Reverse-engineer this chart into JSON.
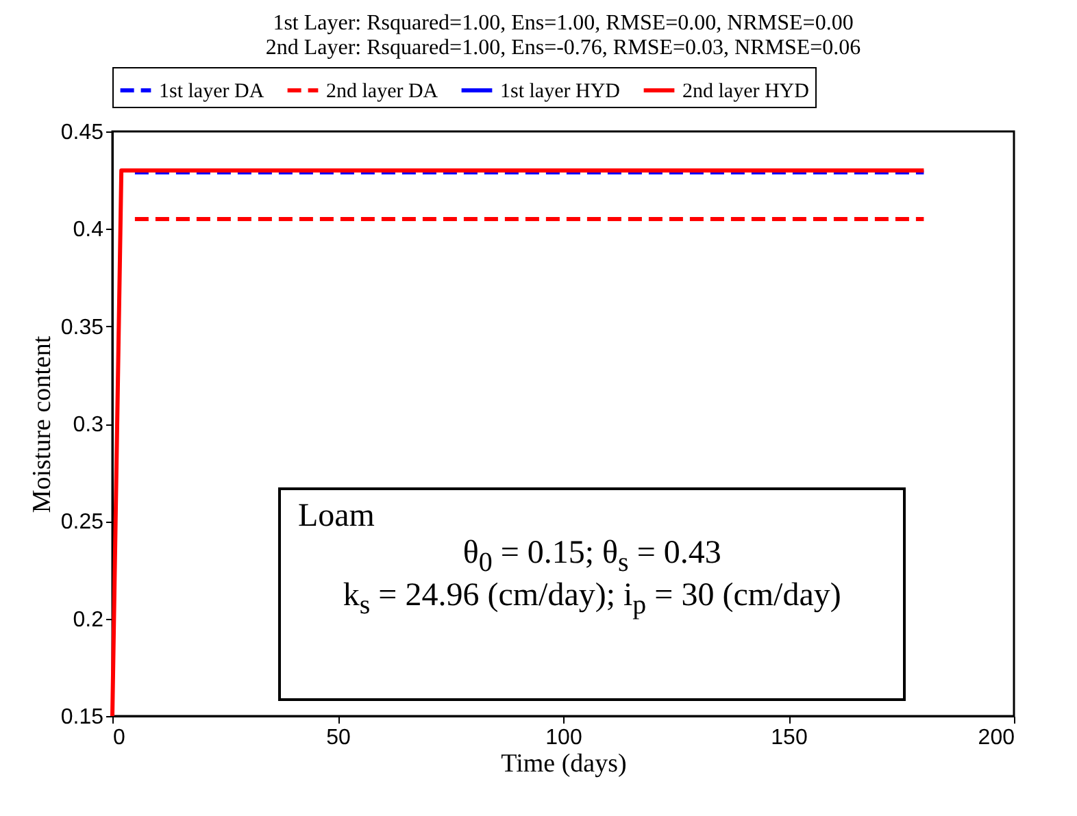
{
  "chart_data": {
    "type": "line",
    "title": [
      "1st Layer: Rsquared=1.00, Ens=1.00, RMSE=0.00, NRMSE=0.00",
      "2nd Layer: Rsquared=1.00, Ens=-0.76, RMSE=0.03, NRMSE=0.06"
    ],
    "xlabel": "Time (days)",
    "ylabel": "Moisture content",
    "xlim": [
      0,
      200
    ],
    "xticks": [
      0,
      50,
      100,
      150,
      200
    ],
    "ylim": [
      0.15,
      0.45
    ],
    "yticks": [
      0.15,
      0.2,
      0.25,
      0.3,
      0.35,
      0.4,
      0.45
    ],
    "grid": false,
    "legend": "top",
    "series": [
      {
        "name": "1st layer DA",
        "color": "#0000ff",
        "line_style": "dashed",
        "x": [
          5,
          180
        ],
        "values": [
          0.429,
          0.429
        ]
      },
      {
        "name": "2nd layer DA",
        "color": "#ff0000",
        "line_style": "dashed",
        "x": [
          5,
          180
        ],
        "values": [
          0.405,
          0.405
        ]
      },
      {
        "name": "1st layer HYD",
        "color": "#0000ff",
        "line_style": "solid"
      },
      {
        "name": "2nd layer HYD",
        "color": "#ff0000",
        "line_style": "solid",
        "x": [
          0,
          2,
          180
        ],
        "values": [
          0.15,
          0.43,
          0.43
        ]
      }
    ],
    "annotations": [
      "Loam",
      "θ$_{0}$ = 0.15; θ$_{s}$ = 0.43",
      "k$_{s}$ = 24.96 (cm/day); i$_{p}$ = 30 (cm/day)"
    ]
  }
}
